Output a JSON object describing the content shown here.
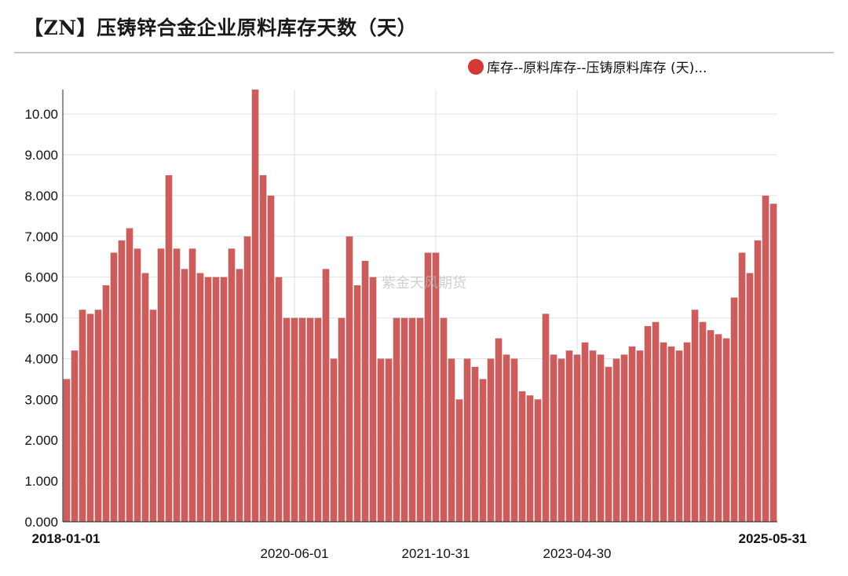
{
  "title": "【ZN】压铸锌合金企业原料库存天数（天）",
  "watermark": "紫金天风期货",
  "colors": {
    "bar": "#cd5c5c",
    "legend_dot": "#d43a35",
    "grid": "#e2e2e2",
    "axis": "#222222"
  },
  "chart_data": {
    "type": "bar",
    "title": "【ZN】压铸锌合金企业原料库存天数（天）",
    "legend_label": "库存--原料库存--压铸原料库存 (天)...",
    "legend_position": "top-right",
    "grid": true,
    "ylim": [
      0,
      10.6
    ],
    "y_ticks": [
      {
        "value": 0,
        "label": "0.000"
      },
      {
        "value": 1,
        "label": "1.000"
      },
      {
        "value": 2,
        "label": "2.000"
      },
      {
        "value": 3,
        "label": "3.000"
      },
      {
        "value": 4,
        "label": "4.000"
      },
      {
        "value": 5,
        "label": "5.000"
      },
      {
        "value": 6,
        "label": "6.000"
      },
      {
        "value": 7,
        "label": "7.000"
      },
      {
        "value": 8,
        "label": "8.000"
      },
      {
        "value": 9,
        "label": "9.000"
      },
      {
        "value": 10,
        "label": "10.00"
      }
    ],
    "x_start_label": "2018-01-01",
    "x_end_label": "2025-05-31",
    "x_mid_ticks": [
      {
        "bar_index": 29,
        "label": "2020-06-01"
      },
      {
        "bar_index": 47,
        "label": "2021-10-31"
      },
      {
        "bar_index": 65,
        "label": "2023-04-30"
      }
    ],
    "values": [
      3.5,
      4.2,
      5.2,
      5.1,
      5.2,
      5.8,
      6.6,
      6.9,
      7.2,
      6.7,
      6.1,
      5.2,
      6.7,
      8.5,
      6.7,
      6.2,
      6.7,
      6.1,
      6.0,
      6.0,
      6.0,
      6.7,
      6.2,
      7.0,
      10.6,
      8.5,
      8.0,
      6.0,
      5.0,
      5.0,
      5.0,
      5.0,
      5.0,
      6.2,
      4.0,
      5.0,
      7.0,
      5.8,
      6.4,
      6.0,
      4.0,
      4.0,
      5.0,
      5.0,
      5.0,
      5.0,
      6.6,
      6.6,
      5.0,
      4.0,
      3.0,
      4.0,
      3.8,
      3.5,
      4.0,
      4.5,
      4.1,
      4.0,
      3.2,
      3.1,
      3.0,
      5.1,
      4.1,
      4.0,
      4.2,
      4.1,
      4.4,
      4.2,
      4.1,
      3.8,
      4.0,
      4.1,
      4.3,
      4.2,
      4.8,
      4.9,
      4.4,
      4.3,
      4.2,
      4.4,
      5.2,
      4.9,
      4.7,
      4.6,
      4.5,
      5.5,
      6.6,
      6.1,
      6.9,
      8.0,
      7.8
    ]
  }
}
